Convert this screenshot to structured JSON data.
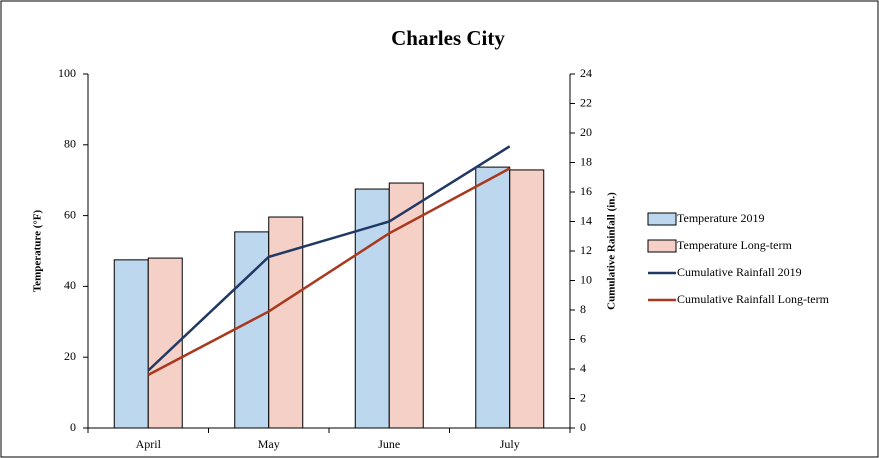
{
  "chart_data": {
    "type": "bar",
    "title": "Charles City",
    "categories": [
      "April",
      "May",
      "June",
      "July"
    ],
    "ylabel": "Temperature (°F)",
    "y2label": "Cumulative Rainfall (in.)",
    "ylim": [
      0,
      100
    ],
    "yticks": [
      0,
      20,
      40,
      60,
      80,
      100
    ],
    "y2lim": [
      0,
      24
    ],
    "y2ticks": [
      0,
      2,
      4,
      6,
      8,
      10,
      12,
      14,
      16,
      18,
      20,
      22,
      24
    ],
    "series": [
      {
        "name": "Temperature 2019",
        "type": "bar",
        "color": "#bdd7ee",
        "values": [
          47.5,
          55.4,
          67.5,
          73.7
        ]
      },
      {
        "name": "Temperature Long-term",
        "type": "bar",
        "color": "#f4d0c6",
        "values": [
          48,
          59.6,
          69.2,
          72.9
        ]
      },
      {
        "name": "Cumulative Rainfall 2019",
        "type": "line",
        "axis": "y2",
        "color": "#1f3864",
        "values": [
          3.9,
          11.6,
          14.0,
          19.1
        ]
      },
      {
        "name": "Cumulative Rainfall Long-term",
        "type": "line",
        "axis": "y2",
        "color": "#a9381e",
        "values": [
          3.6,
          7.9,
          13.2,
          17.6
        ]
      }
    ]
  }
}
